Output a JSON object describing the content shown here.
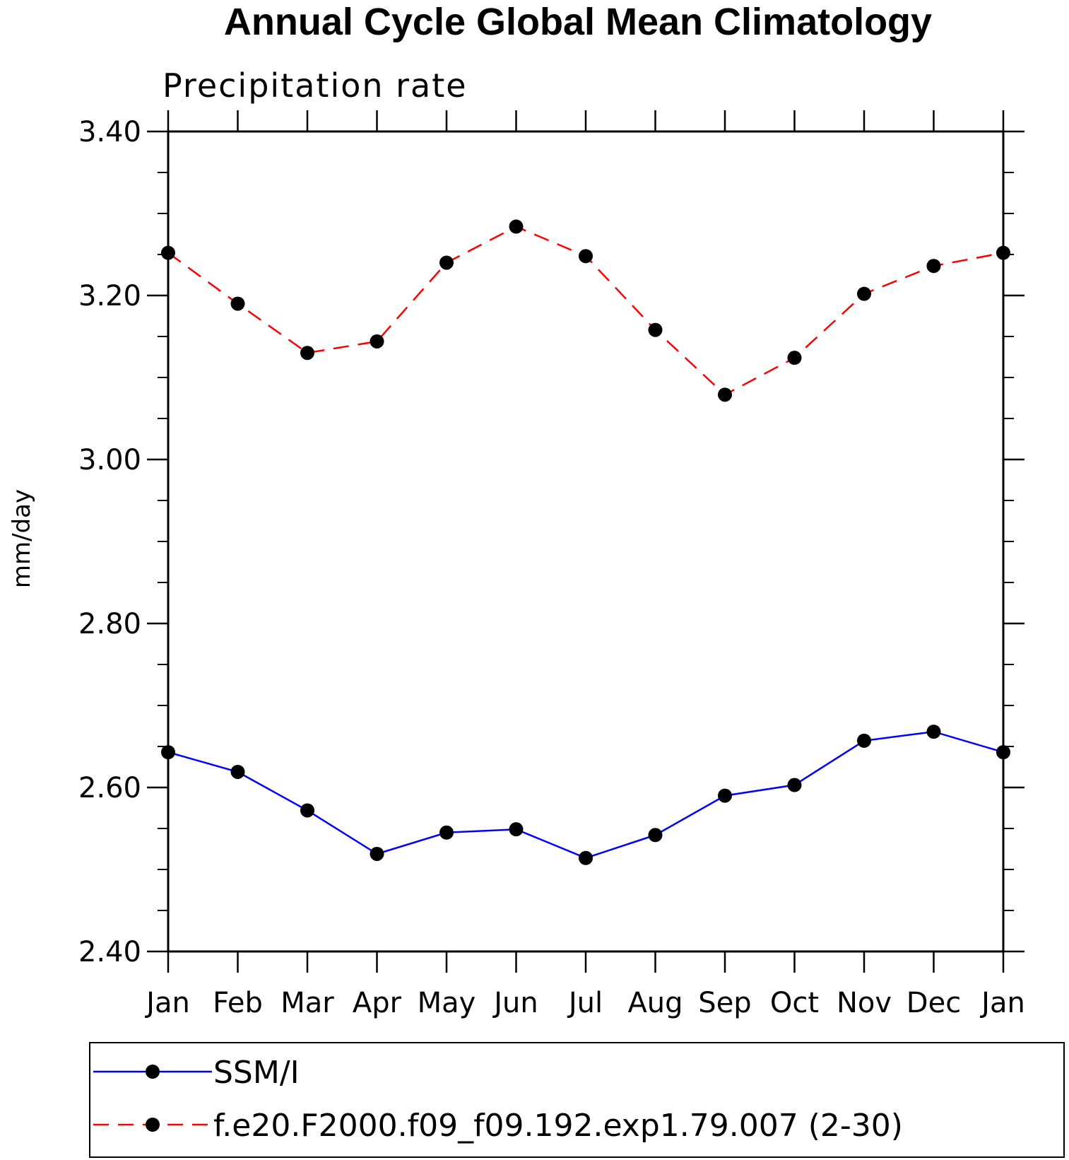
{
  "chart_data": {
    "type": "line",
    "title": "Annual Cycle Global Mean Climatology",
    "subtitle": "Precipitation rate",
    "xlabel": "",
    "ylabel": "mm/day",
    "categories": [
      "Jan",
      "Feb",
      "Mar",
      "Apr",
      "May",
      "Jun",
      "Jul",
      "Aug",
      "Sep",
      "Oct",
      "Nov",
      "Dec",
      "Jan"
    ],
    "ylim": [
      2.4,
      3.4
    ],
    "yticks": [
      "2.40",
      "2.60",
      "2.80",
      "3.00",
      "3.20",
      "3.40"
    ],
    "yminor_step": 0.05,
    "grid": false,
    "legend_position": "bottom",
    "series": [
      {
        "name": "SSM/I",
        "color": "#0000ff",
        "line_style": "solid",
        "marker": "filled-circle",
        "values": [
          2.643,
          2.619,
          2.572,
          2.519,
          2.545,
          2.549,
          2.514,
          2.542,
          2.59,
          2.603,
          2.657,
          2.668,
          2.643
        ]
      },
      {
        "name": "f.e20.F2000.f09_f09.192.exp1.79.007 (2-30)",
        "color": "#ff0000",
        "line_style": "dashed",
        "marker": "filled-circle",
        "values": [
          3.252,
          3.19,
          3.13,
          3.144,
          3.24,
          3.284,
          3.248,
          3.158,
          3.079,
          3.124,
          3.202,
          3.236,
          3.252
        ]
      }
    ]
  }
}
